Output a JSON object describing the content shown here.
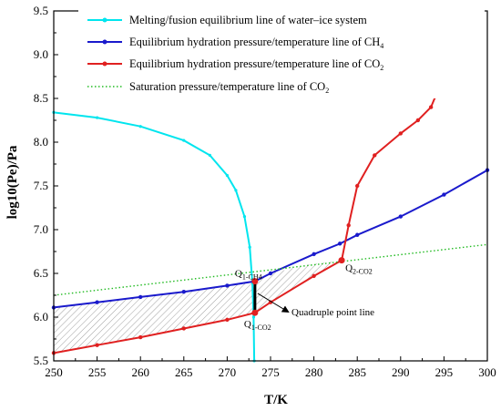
{
  "chart_data": {
    "type": "line",
    "xlabel": "T/K",
    "ylabel": "log10(Pe)/Pa",
    "xlim": [
      250,
      300
    ],
    "ylim": [
      5.5,
      9.5
    ],
    "xticks": [
      "250",
      "255",
      "260",
      "265",
      "270",
      "275",
      "280",
      "285",
      "290",
      "295",
      "300"
    ],
    "yticks": [
      "5.5",
      "6.0",
      "6.5",
      "7.0",
      "7.5",
      "8.0",
      "8.5",
      "9.0",
      "9.5"
    ],
    "grid": false,
    "legend_position": "top-left",
    "series": [
      {
        "name": "Melting/fusion equilibrium line of water–ice system",
        "color": "#00e5ee",
        "marker": "small-dot",
        "points": [
          [
            250,
            8.34
          ],
          [
            255,
            8.28
          ],
          [
            260,
            8.18
          ],
          [
            265,
            8.02
          ],
          [
            268,
            7.85
          ],
          [
            270,
            7.62
          ],
          [
            271,
            7.45
          ],
          [
            272,
            7.15
          ],
          [
            272.6,
            6.8
          ],
          [
            272.9,
            6.4
          ],
          [
            273.05,
            6.0
          ],
          [
            273.12,
            5.5
          ]
        ]
      },
      {
        "name": "Equilibrium hydration pressure/temperature line of CH",
        "name_sub": "4",
        "color": "#1a1acc",
        "marker": "dot",
        "points": [
          [
            250,
            6.11
          ],
          [
            255,
            6.17
          ],
          [
            260,
            6.23
          ],
          [
            265,
            6.29
          ],
          [
            270,
            6.36
          ],
          [
            273.2,
            6.41
          ],
          [
            275,
            6.5
          ],
          [
            280,
            6.72
          ],
          [
            283,
            6.84
          ],
          [
            285,
            6.94
          ],
          [
            290,
            7.15
          ],
          [
            295,
            7.4
          ],
          [
            300,
            7.68
          ]
        ]
      },
      {
        "name": "Equilibrium hydration pressure/temperature line of CO",
        "name_sub": "2",
        "color": "#e02020",
        "marker": "dot",
        "points": [
          [
            250,
            5.59
          ],
          [
            255,
            5.68
          ],
          [
            260,
            5.77
          ],
          [
            265,
            5.87
          ],
          [
            270,
            5.97
          ],
          [
            273.2,
            6.05
          ],
          [
            275,
            6.17
          ],
          [
            280,
            6.47
          ],
          [
            283.2,
            6.65
          ],
          [
            284,
            7.05
          ],
          [
            285,
            7.5
          ],
          [
            287,
            7.85
          ],
          [
            290,
            8.1
          ],
          [
            292,
            8.25
          ],
          [
            293.5,
            8.4
          ],
          [
            294,
            8.52
          ]
        ]
      },
      {
        "name": "Saturation pressure/temperature line of CO",
        "name_sub": "2",
        "color": "#22bb22",
        "style": "dotted",
        "points": [
          [
            250,
            6.25
          ],
          [
            300,
            6.83
          ]
        ]
      }
    ],
    "special_points": [
      {
        "label": "Q",
        "label_sub": "1-CH4",
        "x": 273.2,
        "y": 6.41
      },
      {
        "label": "Q",
        "label_sub": "1-CO2",
        "x": 273.2,
        "y": 6.05
      },
      {
        "label": "Q",
        "label_sub": "2-CO2",
        "x": 283.2,
        "y": 6.65
      }
    ],
    "annotations": [
      {
        "text": "Quadruple point line",
        "x": 278.5,
        "y": 5.89
      }
    ]
  }
}
